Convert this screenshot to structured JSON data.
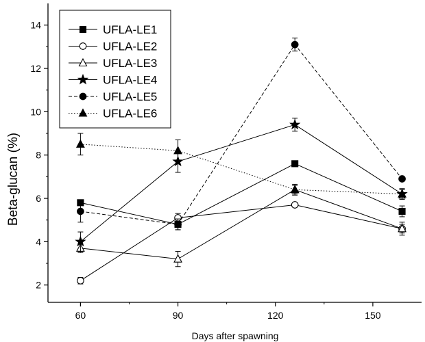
{
  "chart_data": {
    "type": "line",
    "title": "",
    "xlabel": "Days after spawning",
    "ylabel": "Beta-glucan (%)",
    "xlim": [
      50,
      165
    ],
    "ylim": [
      1.2,
      15
    ],
    "xticks": [
      60,
      90,
      120,
      150
    ],
    "yticks": [
      2,
      4,
      6,
      8,
      10,
      12,
      14
    ],
    "grid": false,
    "legend_position": "top-left",
    "x": [
      60,
      90,
      126,
      159
    ],
    "series": [
      {
        "name": "UFLA-LE1",
        "marker": "square-filled",
        "line": "solid",
        "values": [
          5.8,
          4.8,
          7.6,
          5.4
        ],
        "errors": [
          0.1,
          0.25,
          0.1,
          0.25
        ]
      },
      {
        "name": "UFLA-LE2",
        "marker": "circle-open",
        "line": "solid",
        "values": [
          2.2,
          5.1,
          5.7,
          4.6
        ],
        "errors": [
          0.15,
          0.2,
          0.1,
          0.2
        ]
      },
      {
        "name": "UFLA-LE3",
        "marker": "triangle-open",
        "line": "solid",
        "values": [
          3.7,
          3.2,
          6.4,
          4.6
        ],
        "errors": [
          0.2,
          0.35,
          0.25,
          0.3
        ]
      },
      {
        "name": "UFLA-LE4",
        "marker": "star-filled",
        "line": "solid",
        "values": [
          4.0,
          7.7,
          9.4,
          6.2
        ],
        "errors": [
          0.45,
          0.5,
          0.3,
          0.25
        ]
      },
      {
        "name": "UFLA-LE5",
        "marker": "circle-filled",
        "line": "dashed",
        "values": [
          5.4,
          4.8,
          13.1,
          6.9
        ],
        "errors": [
          0.5,
          0.25,
          0.3,
          0.1
        ]
      },
      {
        "name": "UFLA-LE6",
        "marker": "triangle-filled",
        "line": "dotted",
        "values": [
          8.5,
          8.2,
          6.4,
          6.2
        ],
        "errors": [
          0.5,
          0.5,
          0.2,
          0.2
        ]
      }
    ]
  }
}
